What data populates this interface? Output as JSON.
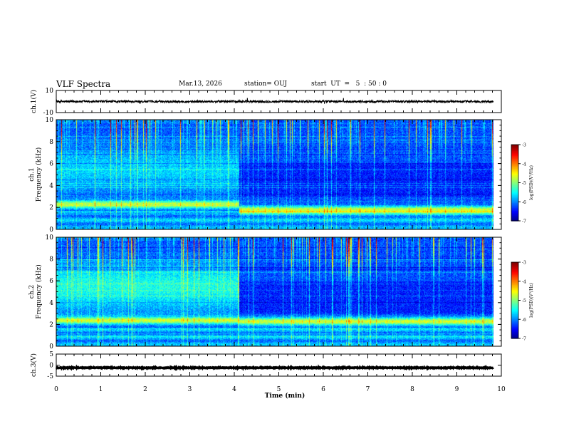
{
  "header": {
    "title": "VLF Spectra",
    "date": "Mar.13, 2026",
    "station": "station= OUJ",
    "start": "start  UT  =   5  : 50 : 0"
  },
  "chart_data": [
    {
      "type": "line",
      "name": "waveform-ch1",
      "ylabel": "ch.1(V)",
      "ylim": [
        -10,
        10
      ],
      "y_ticks": [
        "10",
        "-10"
      ],
      "baseline": 0,
      "noise_amplitude": 1
    },
    {
      "type": "heatmap",
      "name": "spectrogram-ch1",
      "ylabel": "ch.1 Frequency  (kHz)",
      "ylim": [
        0,
        10
      ],
      "y_ticks": [
        "0",
        "2",
        "4",
        "6",
        "8",
        "10"
      ],
      "colorbar": {
        "label": "log(PSD)(V²/Hz)",
        "range": [
          -7,
          -3
        ],
        "ticks": [
          "-3",
          "-4",
          "-5",
          "-6",
          "-7"
        ]
      },
      "bands_khz": [
        2.3,
        1.8
      ],
      "band_transition_min": 4.1
    },
    {
      "type": "heatmap",
      "name": "spectrogram-ch2",
      "ylabel": "ch.2 Frequency  (kHz)",
      "ylim": [
        0,
        10
      ],
      "y_ticks": [
        "0",
        "2",
        "4",
        "6",
        "8",
        "10"
      ],
      "colorbar": {
        "label": "log(PSD)(V²/Hz)",
        "range": [
          -7,
          -3
        ],
        "ticks": [
          "-3",
          "-4",
          "-5",
          "-6",
          "-7"
        ]
      },
      "bands_khz": [
        2.4,
        2.3
      ],
      "band_transition_min": 4.1
    },
    {
      "type": "line",
      "name": "waveform-ch3",
      "ylabel": "ch.3(V)",
      "ylim": [
        -5,
        5
      ],
      "y_ticks": [
        "5",
        "0",
        "-5"
      ],
      "baseline": -1.2,
      "noise_amplitude": 0.15
    }
  ],
  "x_axis": {
    "label": "Time  (min)",
    "range": [
      0,
      10
    ],
    "data_end": 9.82,
    "ticks": [
      "0",
      "1",
      "2",
      "3",
      "4",
      "5",
      "6",
      "7",
      "8",
      "9",
      "10"
    ]
  }
}
